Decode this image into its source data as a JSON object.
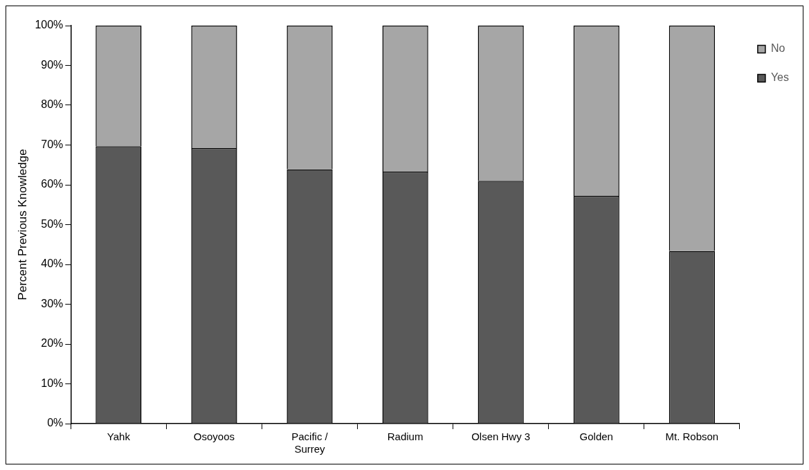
{
  "chart_data": {
    "type": "bar",
    "stacked": true,
    "ylabel": "Percent Previous Knowledge",
    "categories": [
      "Yahk",
      "Osoyoos",
      "Pacific / Surrey",
      "Radium",
      "Olsen Hwy 3",
      "Golden",
      "Mt. Robson"
    ],
    "series": [
      {
        "name": "Yes",
        "color": "#595959",
        "values": [
          69.7,
          69.2,
          63.9,
          63.3,
          61.0,
          57.2,
          43.4
        ]
      },
      {
        "name": "No",
        "color": "#a6a6a6",
        "values": [
          30.3,
          30.8,
          36.1,
          36.7,
          39.0,
          42.8,
          56.6
        ]
      }
    ],
    "ylim": [
      0,
      100
    ],
    "yticks": [
      {
        "value": 0,
        "label": "0%"
      },
      {
        "value": 10,
        "label": "10%"
      },
      {
        "value": 20,
        "label": "20%"
      },
      {
        "value": 30,
        "label": "30%"
      },
      {
        "value": 40,
        "label": "40%"
      },
      {
        "value": 50,
        "label": "50%"
      },
      {
        "value": 60,
        "label": "60%"
      },
      {
        "value": 70,
        "label": "70%"
      },
      {
        "value": 80,
        "label": "80%"
      },
      {
        "value": 90,
        "label": "90%"
      },
      {
        "value": 100,
        "label": "100%"
      }
    ],
    "grid": false,
    "legend": "right"
  }
}
